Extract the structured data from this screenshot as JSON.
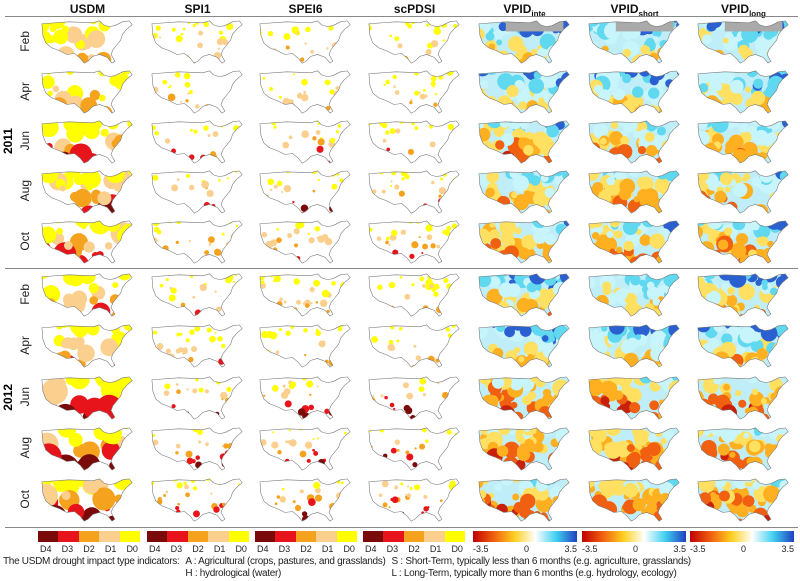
{
  "columns": [
    {
      "name": "USDM",
      "sub": ""
    },
    {
      "name": "SPI1",
      "sub": ""
    },
    {
      "name": "SPEI6",
      "sub": ""
    },
    {
      "name": "scPDSI",
      "sub": ""
    },
    {
      "name": "VPID",
      "sub": "inte"
    },
    {
      "name": "VPID",
      "sub": "short"
    },
    {
      "name": "VPID",
      "sub": "long"
    }
  ],
  "years": [
    {
      "label": "2011",
      "months": [
        "Feb",
        "Apr",
        "Jun",
        "Aug",
        "Oct"
      ]
    },
    {
      "label": "2012",
      "months": [
        "Feb",
        "Apr",
        "Jun",
        "Aug",
        "Oct"
      ]
    }
  ],
  "legend": {
    "categorical": {
      "labels": [
        "D4",
        "D3",
        "D2",
        "D1",
        "D0"
      ],
      "colors": [
        "#7b0a0a",
        "#e8141b",
        "#f5a21f",
        "#fbd08f",
        "#ffff00"
      ]
    },
    "continuous": {
      "ticks": [
        "-3.5",
        "0",
        "3.5"
      ],
      "colors": [
        "#c00000",
        "#f06010",
        "#ffd020",
        "#ffffff",
        "#40d0f0",
        "#2040c0"
      ]
    }
  },
  "notes": {
    "title": "The USDM drought impact type indicators:",
    "a": "A : Agricultural (crops, pastures, and grasslands)",
    "h": "H : hydrological (water)",
    "s": "S : Short-Term, typically less than 6 months (e.g. agriculture, grasslands)",
    "l": "L :  Long-Term, typically more than 6 months (e.g. hydrology, ecology)"
  }
}
